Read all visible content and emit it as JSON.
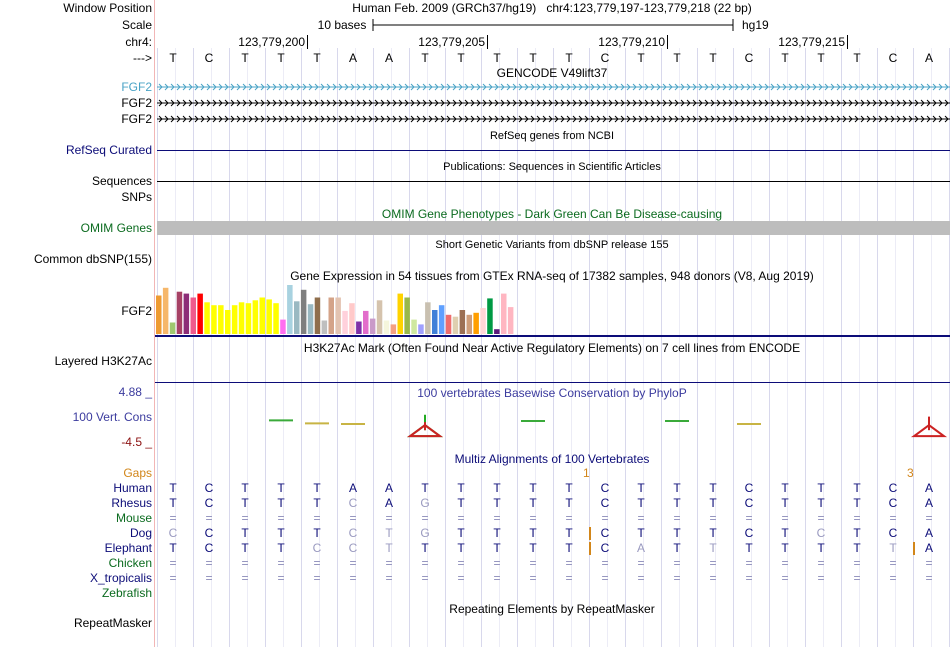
{
  "labels": {
    "window_position": "Window Position",
    "scale": "Scale",
    "chrom": "chr4:",
    "strand": "--->",
    "fgf2_a": "FGF2",
    "fgf2_b": "FGF2",
    "fgf2_c": "FGF2",
    "refseq": "RefSeq Curated",
    "sequences": "Sequences",
    "snps": "SNPs",
    "omim": "OMIM Genes",
    "dbsnp": "Common dbSNP(155)",
    "gtex_gene": "FGF2",
    "h3k27ac": "Layered H3K27Ac",
    "cons_max": "4.88 _",
    "cons": "100 Vert. Cons",
    "cons_min": "-4.5 _",
    "gaps": "Gaps",
    "repeatmasker": "RepeatMasker"
  },
  "titles": {
    "assembly": "Human Feb. 2009 (GRCh37/hg19)",
    "position": "chr4:123,779,197-123,779,218 (22 bp)",
    "scale_bases": "10 bases",
    "scale_db": "hg19",
    "gencode": "GENCODE V49lift37",
    "refseq": "RefSeq genes from NCBI",
    "publications": "Publications: Sequences in Scientific Articles",
    "omim": "OMIM Gene Phenotypes - Dark Green Can Be Disease-causing",
    "dbsnp": "Short Genetic Variants from dbSNP release 155",
    "gtex": "Gene Expression in 54 tissues from GTEx RNA-seq of 17382 samples, 948 donors (V8, Aug 2019)",
    "h3k27ac": "H3K27Ac Mark (Often Found Near Active Regulatory Elements) on 7 cell lines from ENCODE",
    "cons": "100 vertebrates Basewise Conservation by PhyloP",
    "multiz": "Multiz Alignments of 100 Vertebrates",
    "repeatmasker": "Repeating Elements by RepeatMasker"
  },
  "ruler": {
    "ticks": [
      {
        "label": "123,779,200",
        "base_index": 3
      },
      {
        "label": "123,779,205",
        "base_index": 8
      },
      {
        "label": "123,779,210",
        "base_index": 13
      },
      {
        "label": "123,779,215",
        "base_index": 18
      }
    ]
  },
  "reference_bases": [
    "T",
    "C",
    "T",
    "T",
    "T",
    "A",
    "A",
    "T",
    "T",
    "T",
    "T",
    "T",
    "C",
    "T",
    "T",
    "T",
    "C",
    "T",
    "T",
    "T",
    "C",
    "A"
  ],
  "gaps": [
    {
      "label": "1",
      "base_index": 11
    },
    {
      "label": "3",
      "base_index": 20
    }
  ],
  "species": [
    {
      "name": "Human",
      "bases": [
        "T",
        "C",
        "T",
        "T",
        "T",
        "A",
        "A",
        "T",
        "T",
        "T",
        "T",
        "T",
        "C",
        "T",
        "T",
        "T",
        "C",
        "T",
        "T",
        "T",
        "C",
        "A"
      ],
      "faded": []
    },
    {
      "name": "Rhesus",
      "bases": [
        "T",
        "C",
        "T",
        "T",
        "T",
        "C",
        "A",
        "G",
        "T",
        "T",
        "T",
        "T",
        "C",
        "T",
        "T",
        "T",
        "C",
        "T",
        "T",
        "T",
        "C",
        "A"
      ],
      "faded": [
        5,
        7
      ]
    },
    {
      "name": "Mouse",
      "bases": [
        "=",
        "=",
        "=",
        "=",
        "=",
        "=",
        "=",
        "=",
        "=",
        "=",
        "=",
        "=",
        "=",
        "=",
        "=",
        "=",
        "=",
        "=",
        "=",
        "=",
        "=",
        "="
      ],
      "faded": []
    },
    {
      "name": "Dog",
      "bases": [
        "C",
        "C",
        "T",
        "T",
        "T",
        "C",
        "T",
        "G",
        "T",
        "T",
        "T",
        "T",
        "C",
        "T",
        "T",
        "T",
        "C",
        "T",
        "C",
        "T",
        "C",
        "A"
      ],
      "faded": [
        0,
        5,
        6,
        7,
        18
      ]
    },
    {
      "name": "Elephant",
      "bases": [
        "T",
        "C",
        "T",
        "T",
        "C",
        "C",
        "T",
        "T",
        "T",
        "T",
        "T",
        "T",
        "C",
        "A",
        "T",
        "T",
        "T",
        "T",
        "T",
        "T",
        "T",
        "A"
      ],
      "faded": [
        4,
        5,
        6,
        13,
        15,
        20
      ]
    },
    {
      "name": "Chicken",
      "bases": [
        "=",
        "=",
        "=",
        "=",
        "=",
        "=",
        "=",
        "=",
        "=",
        "=",
        "=",
        "=",
        "=",
        "=",
        "=",
        "=",
        "=",
        "=",
        "=",
        "=",
        "=",
        "="
      ],
      "faded": []
    },
    {
      "name": "X_tropicalis",
      "bases": [
        "=",
        "=",
        "=",
        "=",
        "=",
        "=",
        "=",
        "=",
        "=",
        "=",
        "=",
        "=",
        "=",
        "=",
        "=",
        "=",
        "=",
        "=",
        "=",
        "=",
        "=",
        "="
      ],
      "faded": []
    },
    {
      "name": "Zebrafish",
      "bases": [],
      "faded": []
    }
  ],
  "chart_data": {
    "type": "bar",
    "title": "Gene Expression in 54 tissues from GTEx RNA-seq of 17382 samples, 948 donors (V8, Aug 2019)",
    "gene": "FGF2",
    "ylim": [
      0,
      52
    ],
    "values": [
      40,
      48,
      12,
      44,
      42,
      38,
      42,
      33,
      30,
      30,
      25,
      30,
      33,
      32,
      35,
      38,
      36,
      32,
      15,
      51,
      34,
      46,
      31,
      38,
      14,
      38,
      38,
      24,
      32,
      13,
      24,
      16,
      35,
      14,
      10,
      42,
      38,
      15,
      10,
      33,
      25,
      30,
      20,
      18,
      25,
      20,
      22,
      27,
      37,
      5,
      42,
      28,
      0,
      0
    ],
    "colors": [
      "#ee9a31",
      "#f6b76a",
      "#9fc86f",
      "#a64165",
      "#8c2d77",
      "#ef5a8c",
      "#fe0000",
      "#ffff00",
      "#ffff00",
      "#ffff00",
      "#ffff00",
      "#ffff00",
      "#ffff00",
      "#ffff00",
      "#ffff00",
      "#ffff00",
      "#ffff00",
      "#ffff00",
      "#ff6ef0",
      "#a8d2e0",
      "#9ab9c2",
      "#7f7f7f",
      "#9ab9c2",
      "#8f6e4c",
      "#bfbfbf",
      "#d4a388",
      "#e3c3b0",
      "#ffd1dc",
      "#ffc9c9",
      "#7f30a8",
      "#e26dcb",
      "#c99ac9",
      "#d5c3ad",
      "#f5f5dc",
      "#f4a082",
      "#ffd300",
      "#99b84b",
      "#cfe8a0",
      "#a0a0ff",
      "#c9c0b0",
      "#3f7fd8",
      "#5fa0ff",
      "#ee6d6d",
      "#dfcfb0",
      "#9c7054",
      "#cf9e7a",
      "#ff9f00",
      "#ffd6d6",
      "#009a44",
      "#5a1a7a",
      "#ffb6c1",
      "#ffb6c1",
      "#ffffff",
      "#ffffff"
    ]
  },
  "conservation": {
    "max": 4.88,
    "min": -4.5,
    "marks": [
      {
        "base_index": 3,
        "value": 0.3,
        "color": "#3aaa3a"
      },
      {
        "base_index": 4,
        "value": -0.2,
        "color": "#c8b444"
      },
      {
        "base_index": 5,
        "value": -0.3,
        "color": "#c8b444"
      },
      {
        "base_index": 7,
        "value": 1.2,
        "color": "#22aa22"
      },
      {
        "base_index": 7,
        "value": -1.4,
        "color": "#cc2222"
      },
      {
        "base_index": 10,
        "value": 0.2,
        "color": "#3aaa3a"
      },
      {
        "base_index": 14,
        "value": 0.2,
        "color": "#3aaa3a"
      },
      {
        "base_index": 16,
        "value": -0.3,
        "color": "#c8b444"
      },
      {
        "base_index": 21,
        "value": 0.9,
        "color": "#cc2222"
      }
    ]
  },
  "colors": {
    "gencode_blue": "#4aa3c6",
    "navy": "#0c0c78",
    "omim_green": "#0b6b1f",
    "omim_gray": "#bdbdbd",
    "cons_blue": "#3b3b9e",
    "cons_red": "#8b1010",
    "gaps_orange": "#d2861a",
    "grid": "#cfcfe6"
  }
}
